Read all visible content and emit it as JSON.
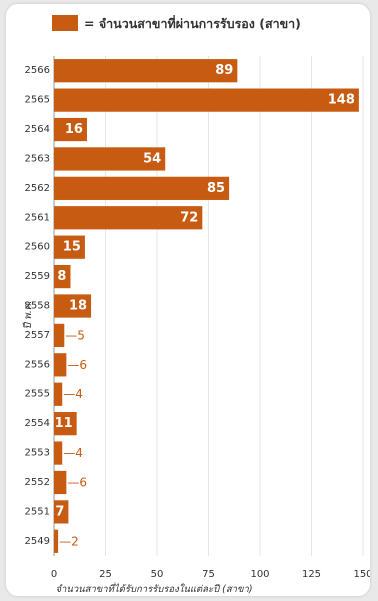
{
  "chart_data": {
    "type": "bar",
    "orientation": "horizontal",
    "legend": {
      "label": "= จำนวนสาขาที่ผ่านการรับรอง (สาขา)",
      "placement": "top"
    },
    "ylabel": "ปี พ.ศ.",
    "xlabel": "จำนวนสาขาที่ได้รับการรับรองในแต่ละปี (สาขา)",
    "categories": [
      "2566",
      "2565",
      "2564",
      "2563",
      "2562",
      "2561",
      "2560",
      "2559",
      "2558",
      "2557",
      "2556",
      "2555",
      "2554",
      "2553",
      "2552",
      "2551",
      "2549"
    ],
    "values": [
      89,
      148,
      16,
      54,
      85,
      72,
      15,
      8,
      18,
      5,
      6,
      4,
      11,
      4,
      6,
      7,
      2
    ],
    "value_labels": [
      "89",
      "148",
      "16",
      "54",
      "85",
      "72",
      "15",
      "8",
      "18",
      "—5",
      "—6",
      "—4",
      "11",
      "—4",
      "—6",
      "7",
      "—2"
    ],
    "xlim": [
      0,
      150
    ],
    "xticks": [
      0,
      25,
      50,
      75,
      100,
      125,
      150
    ],
    "grid": true,
    "colors": {
      "bar": "#c75b12",
      "grid": "#e6e6e6",
      "text": "#333333"
    }
  }
}
